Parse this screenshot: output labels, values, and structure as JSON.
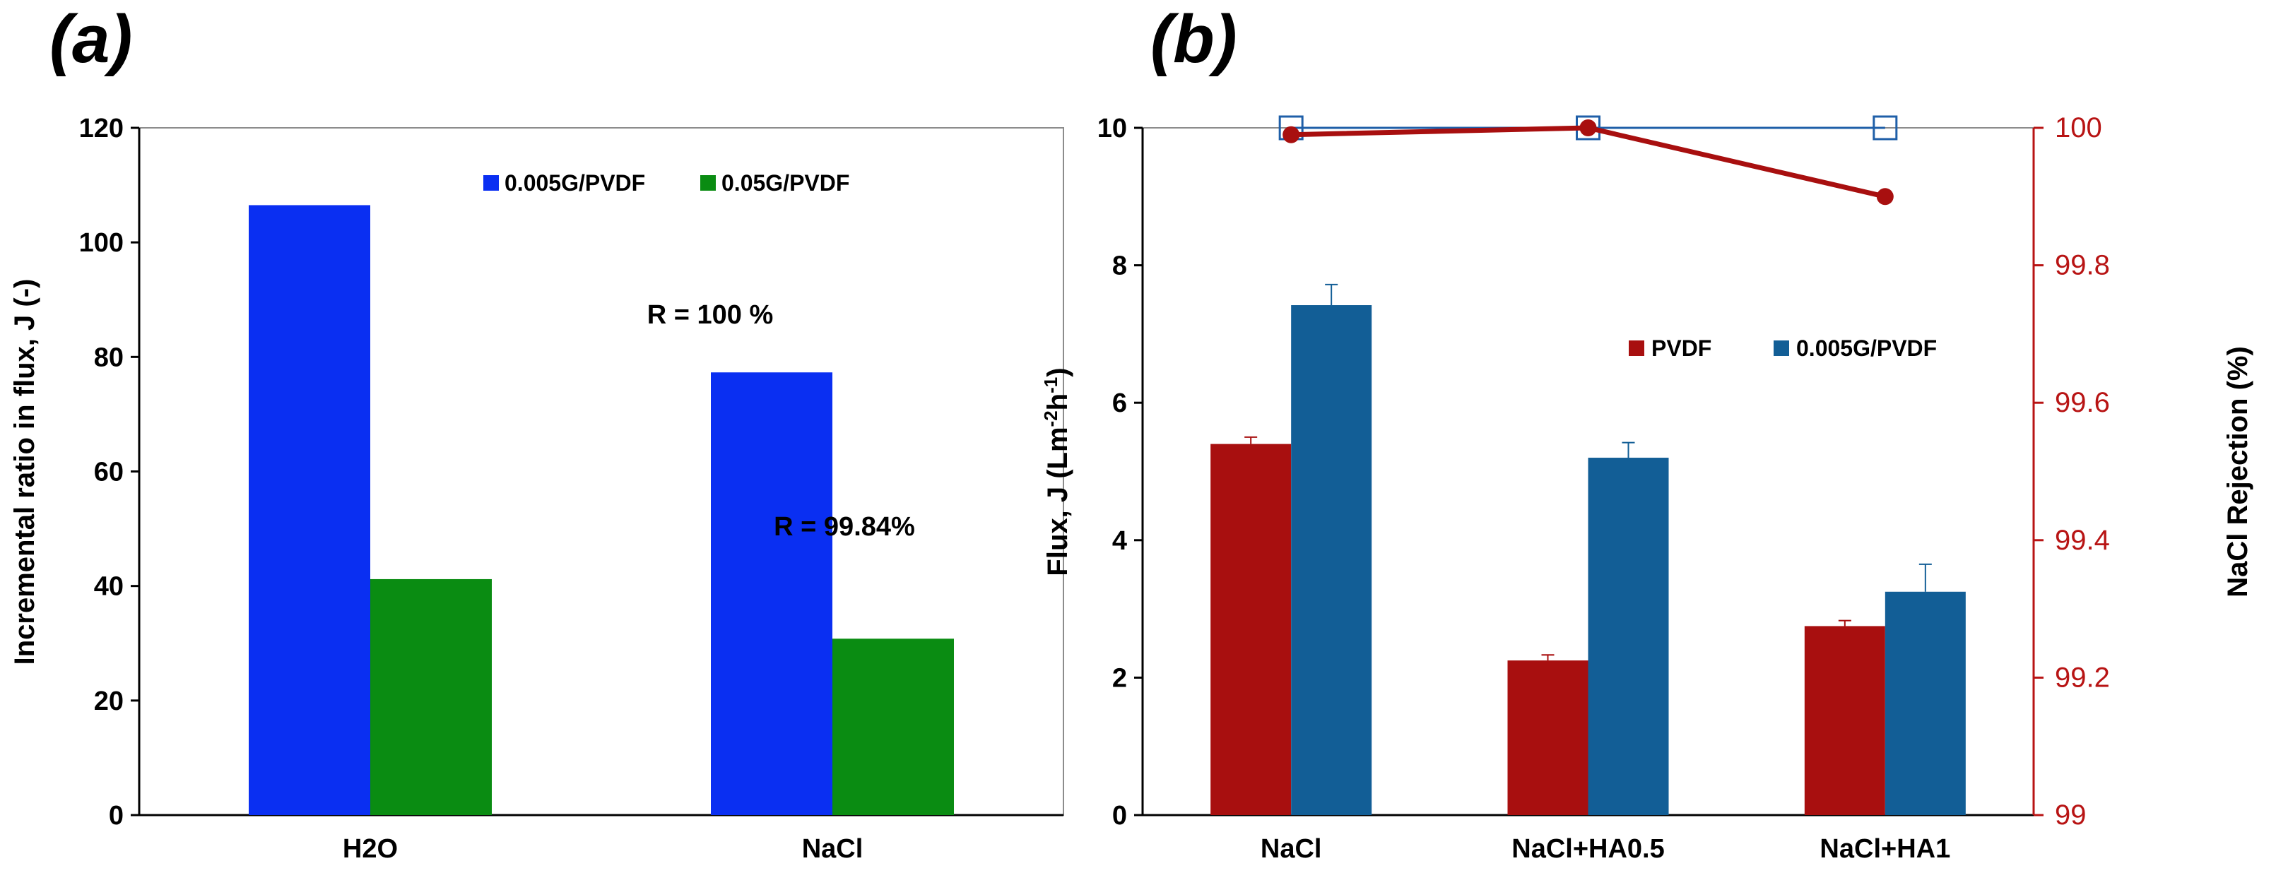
{
  "colors": {
    "blue_bright": "#0a2ff2",
    "green": "#0a8c12",
    "dark_red": "#a80f0f",
    "steel_blue": "#125e96",
    "axis_red": "#b81414",
    "line_blue": "#1f5fa8",
    "axis_black": "#000000",
    "frame_gray": "#8c8c8c"
  },
  "chart_data": [
    {
      "panel_label": "(a)",
      "type": "bar",
      "ylabel": "Incremental ratio in flux,  J (-)",
      "xlabel": "",
      "ylim": [
        0,
        120
      ],
      "ytick_labels": [
        "0",
        "20",
        "40",
        "60",
        "80",
        "100",
        "120"
      ],
      "ytick_values": [
        0,
        20,
        40,
        60,
        80,
        100,
        120
      ],
      "categories": [
        "H2O",
        "NaCl"
      ],
      "series": [
        {
          "name": "0.005G/PVDF",
          "color": "#0a2ff2",
          "values": [
            106.5,
            77.3
          ]
        },
        {
          "name": "0.05G/PVDF",
          "color": "#0a8c12",
          "values": [
            41.2,
            30.8
          ]
        }
      ],
      "annotations": [
        {
          "text": "R = 100 %",
          "anchor": "above NaCl 0.005G/PVDF bar"
        },
        {
          "text": "R = 99.84%",
          "anchor": "above NaCl 0.05G/PVDF bar"
        }
      ],
      "legend_position": "top-right",
      "grid": false
    },
    {
      "panel_label": "(b)",
      "type": "bar",
      "ylabel": "Flux, J (Lm",
      "ylabel_sup1": "-2",
      "ylabel_mid": "h",
      "ylabel_sup2": "-1",
      "ylabel_end": ")",
      "y2label": "NaCl Rejection (%)",
      "xlabel": "",
      "ylim": [
        0,
        10
      ],
      "ytick_labels": [
        "0",
        "2",
        "4",
        "6",
        "8",
        "10"
      ],
      "ytick_values": [
        0,
        2,
        4,
        6,
        8,
        10
      ],
      "y2lim": [
        99,
        100
      ],
      "y2tick_labels": [
        "99",
        "99.2",
        "99.4",
        "99.6",
        "99.8",
        "100"
      ],
      "y2tick_values": [
        99,
        99.2,
        99.4,
        99.6,
        99.8,
        100
      ],
      "categories": [
        "NaCl",
        "NaCl+HA0.5",
        "NaCl+HA1"
      ],
      "series": [
        {
          "name": "PVDF",
          "color": "#a80f0f",
          "values": [
            5.4,
            2.25,
            2.75
          ],
          "errors": [
            0.1,
            0.08,
            0.08
          ]
        },
        {
          "name": "0.005G/PVDF",
          "color": "#125e96",
          "values": [
            7.42,
            5.2,
            3.25
          ],
          "errors": [
            0.3,
            0.22,
            0.4
          ]
        }
      ],
      "line_series": [
        {
          "name": "PVDF rejection",
          "color": "#a80f0f",
          "axis": "y2",
          "marker": "circle",
          "values": [
            99.99,
            100.0,
            99.9
          ]
        },
        {
          "name": "0.005G/PVDF rejection",
          "color": "#1f5fa8",
          "axis": "y2",
          "marker": "open-square",
          "values": [
            100.0,
            100.0,
            100.0
          ]
        }
      ],
      "legend_position": "center-right",
      "grid": false
    }
  ]
}
